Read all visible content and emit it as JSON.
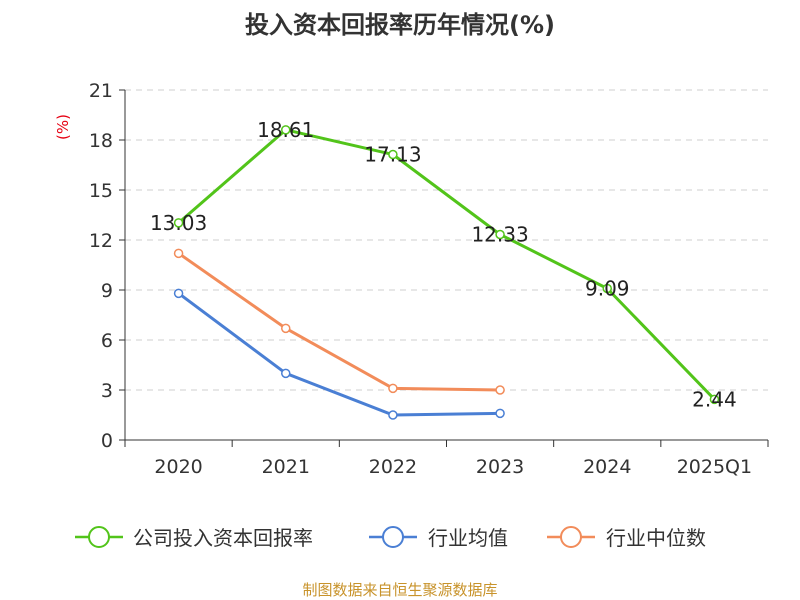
{
  "chart_data": {
    "type": "line",
    "title": "投入资本回报率历年情况(%)",
    "ylabel": "(%)",
    "categories": [
      "2020",
      "2021",
      "2022",
      "2023",
      "2024",
      "2025Q1"
    ],
    "yticks": [
      0,
      3,
      6,
      9,
      12,
      15,
      18,
      21
    ],
    "ylim": [
      0,
      21
    ],
    "grid": true,
    "legend_position": "bottom",
    "series": [
      {
        "name": "公司投入资本回报率",
        "color": "#52c41a",
        "values": [
          13.03,
          18.61,
          17.13,
          12.33,
          9.09,
          2.44
        ],
        "labels": [
          "13.03",
          "18.61",
          "17.13",
          "12.33",
          "9.09",
          "2.44"
        ]
      },
      {
        "name": "行业均值",
        "color": "#4a7fd4",
        "values": [
          8.8,
          4.0,
          1.5,
          1.6,
          null,
          null
        ]
      },
      {
        "name": "行业中位数",
        "color": "#f28c5a",
        "values": [
          11.2,
          6.7,
          3.1,
          3.0,
          null,
          null
        ]
      }
    ],
    "source": "制图数据来自恒生聚源数据库"
  }
}
